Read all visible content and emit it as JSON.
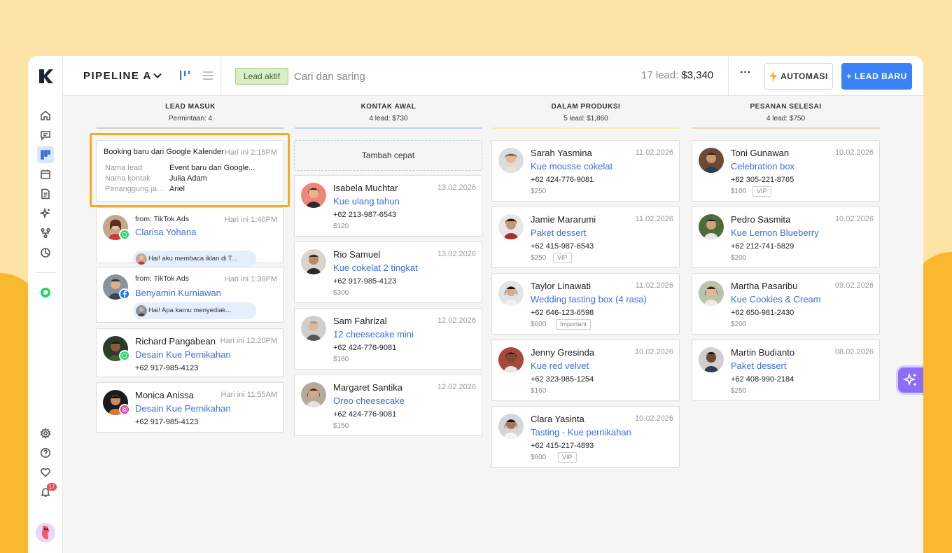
{
  "header": {
    "pipeline_title": "PIPELINE A",
    "filter_tag": "Lead aktif",
    "search_placeholder": "Cari dan saring",
    "lead_count": "17 lead:",
    "total_value": "$3,340",
    "more_label": "···",
    "automation_label": "AUTOMASI",
    "new_lead_label": "+ LEAD BARU"
  },
  "sidebar": {
    "notification_count": "17",
    "icons": [
      "home-icon",
      "chat-icon",
      "pipeline-icon",
      "calendar-icon",
      "document-icon",
      "sparkle-icon",
      "flow-icon",
      "chart-icon",
      "whatsapp-icon",
      "settings-icon",
      "help-icon",
      "heart-icon",
      "bell-icon"
    ]
  },
  "columns": [
    {
      "title": "LEAD MASUK",
      "subtitle": "Permintaan: 4",
      "line_color": "#cfcfcf",
      "booking": {
        "title": "Booking baru dari Google Kalender",
        "date": "Hari ini 2:15PM",
        "rows": [
          {
            "label": "Nama lead",
            "value": "Event baru dari Google..."
          },
          {
            "label": "Nama kontak",
            "value": "Julia Adam"
          },
          {
            "label": "Penanggung ja...",
            "value": "Ariel"
          }
        ]
      },
      "cards": [
        {
          "from": "from: TikTok Ads",
          "name": "Clarisa Yohana",
          "date": "Hari ini 1:40PM",
          "source": "whatsapp",
          "message": "Hai! aku membaca iklan di T..."
        },
        {
          "from": "from: TikTok Ads",
          "name": "Benyamin Kurniawan",
          "date": "Hari ini 1:39PM",
          "source": "facebook",
          "message": "Hai! Apa kamu menyediak..."
        },
        {
          "name": "Richard Pangabean",
          "date": "Hari ini 12:20PM",
          "deal": "Desain Kue Pernikahan",
          "phone": "+62 917-985-4123",
          "source": "whatsapp"
        },
        {
          "name": "Monica Anissa",
          "date": "Hari ini 11:55AM",
          "deal": "Desain Kue Pernikahan",
          "phone": "+62 917-985-4123",
          "source": "instagram"
        }
      ]
    },
    {
      "title": "KONTAK AWAL",
      "subtitle": "4 lead:  $730",
      "line_color": "#bcd3f7",
      "quick_add": "Tambah cepat",
      "cards": [
        {
          "name": "Isabela Muchtar",
          "date": "13.02.2026",
          "deal": "Kue ulang tahun",
          "phone": "+62 213-987-6543",
          "amount": "$120"
        },
        {
          "name": "Rio Samuel",
          "date": "13.02.2026",
          "deal": "Kue cokelat 2 tingkat",
          "phone": "+62 917-985-4123",
          "amount": "$300"
        },
        {
          "name": "Sam Fahrizal",
          "date": "12.02.2026",
          "deal": "12 cheesecake mini",
          "phone": "+62 424-776-9081",
          "amount": "$160"
        },
        {
          "name": "Margaret Santika",
          "date": "12.02.2026",
          "deal": "Oreo cheesecake",
          "phone": "+62 424-776-9081",
          "amount": "$150"
        }
      ]
    },
    {
      "title": "DALAM PRODUKSI",
      "subtitle": "5 lead:  $1,860",
      "line_color": "#f6efb0",
      "cards": [
        {
          "name": "Sarah Yasmina",
          "date": "11.02.2026",
          "deal": "Kue mousse cokelat",
          "phone": "+62 424-776-9081",
          "amount": "$250"
        },
        {
          "name": "Jamie Mararumi",
          "date": "11.02.2026",
          "deal": "Paket dessert",
          "phone": "+62 415-987-6543",
          "amount": "$250",
          "tag": "VIP"
        },
        {
          "name": "Taylor Linawati",
          "date": "11.02.2026",
          "deal": "Wedding tasting box (4 rasa)",
          "phone": "+62 646-123-6598",
          "amount": "$600",
          "tag": "Important"
        },
        {
          "name": "Jenny Gresinda",
          "date": "10.02.2026",
          "deal": "Kue red velvet",
          "phone": "+62 323-985-1254",
          "amount": "$160"
        },
        {
          "name": "Clara Yasinta",
          "date": "10.02.2026",
          "deal": "Tasting - Kue pernikahan",
          "phone": "+62 415-217-4893",
          "amount": "$600",
          "tag": "VIP"
        }
      ]
    },
    {
      "title": "PESANAN SELESAI",
      "subtitle": "4 lead:  $750",
      "line_color": "#f5cfc6",
      "cards": [
        {
          "name": "Toni Gunawan",
          "date": "10.02.2026",
          "deal": "Celebration box",
          "phone": "+62 305-221-8765",
          "amount": "$100",
          "tag": "VIP"
        },
        {
          "name": "Pedro Sasmita",
          "date": "10.02.2026",
          "deal": "Kue Lemon Blueberry",
          "phone": "+62 212-741-5829",
          "amount": "$200"
        },
        {
          "name": "Martha Pasaribu",
          "date": "09.02.2026",
          "deal": "Kue Cookies & Cream",
          "phone": "+62 650-981-2430",
          "amount": "$200"
        },
        {
          "name": "Martin Budianto",
          "date": "08.02.2026",
          "deal": "Paket dessert",
          "phone": "+62 408-990-2184",
          "amount": "$250"
        }
      ]
    }
  ]
}
